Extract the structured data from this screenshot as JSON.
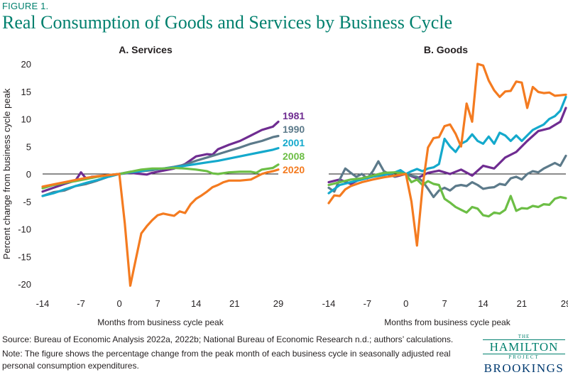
{
  "figure_label": "FIGURE 1.",
  "figure_title": "Real Consumption of Goods and Services by Business Cycle",
  "source": "Source: Bureau of Economic Analysis 2022a, 2022b; National Bureau of Economic Research n.d.; authors’ calculations.",
  "note": "Note: The figure shows the percentage change from the peak month of each business cycle in seasonally adjusted real personal consumption expenditures.",
  "logo": {
    "the": "THE",
    "hamilton": "HAMILTON",
    "project": "PROJECT",
    "brookings": "BROOKINGS"
  },
  "colors": {
    "1981": "#6f2c91",
    "1990": "#5c7a8a",
    "2001": "#14a9cc",
    "2008": "#6cbe45",
    "2020": "#f47b20",
    "zero_line": "#1a1a1a",
    "brand": "#00806e"
  },
  "chart_data": [
    {
      "type": "line",
      "title": "A. Services",
      "xlabel": "Months from business cycle peak",
      "ylabel": "Percent change from business cycle peak",
      "xlim": [
        -14,
        29
      ],
      "ylim": [
        -20,
        20
      ],
      "xticks": [
        -14,
        -7,
        0,
        7,
        14,
        21,
        29
      ],
      "yticks": [
        20,
        15,
        10,
        5,
        0,
        -5,
        -10,
        -15,
        -20
      ],
      "zero_line": true,
      "legend": "end-of-line labels",
      "series": [
        {
          "name": "1981",
          "x": [
            -14,
            -12,
            -10,
            -8,
            -7,
            -6,
            -5,
            -4,
            -2,
            0,
            2,
            4,
            5,
            6,
            8,
            10,
            12,
            14,
            15,
            16,
            17,
            18,
            20,
            22,
            24,
            26,
            28,
            29
          ],
          "y": [
            -3.2,
            -2.5,
            -1.8,
            -1.2,
            0.3,
            -0.9,
            -0.5,
            -0.5,
            -0.2,
            0,
            0.2,
            0,
            -0.1,
            0.2,
            0.6,
            1.0,
            1.8,
            3.2,
            3.4,
            3.6,
            3.5,
            4.5,
            5.3,
            6.0,
            7.0,
            8.0,
            8.6,
            9.5
          ]
        },
        {
          "name": "1990",
          "x": [
            -14,
            -12,
            -10,
            -8,
            -6,
            -4,
            -2,
            0,
            2,
            4,
            6,
            8,
            10,
            12,
            14,
            16,
            18,
            20,
            22,
            24,
            26,
            28,
            29
          ],
          "y": [
            -4.0,
            -3.3,
            -3.0,
            -2.2,
            -1.8,
            -1.2,
            -0.5,
            0,
            0.4,
            0.5,
            0.7,
            1.0,
            1.3,
            1.7,
            2.4,
            3.0,
            3.6,
            4.2,
            4.8,
            5.5,
            6.0,
            6.7,
            6.9
          ]
        },
        {
          "name": "2001",
          "x": [
            -14,
            -12,
            -10,
            -8,
            -6,
            -4,
            -2,
            0,
            2,
            4,
            6,
            8,
            10,
            12,
            14,
            16,
            18,
            20,
            22,
            24,
            26,
            28,
            29
          ],
          "y": [
            -4.0,
            -3.5,
            -2.8,
            -2.2,
            -1.6,
            -1.1,
            -0.5,
            0,
            0.3,
            0.5,
            0.9,
            1.0,
            1.2,
            1.5,
            1.8,
            2.1,
            2.4,
            2.8,
            3.2,
            3.6,
            4.0,
            4.4,
            4.7
          ]
        },
        {
          "name": "2008",
          "x": [
            -14,
            -12,
            -10,
            -8,
            -6,
            -4,
            -2,
            0,
            2,
            4,
            6,
            8,
            10,
            12,
            14,
            16,
            17,
            18,
            20,
            22,
            24,
            25,
            26,
            28,
            29
          ],
          "y": [
            -2.6,
            -2.0,
            -1.6,
            -1.3,
            -0.9,
            -0.5,
            -0.2,
            0,
            0.4,
            0.8,
            1.0,
            1.0,
            1.1,
            1.0,
            0.8,
            0.5,
            0.1,
            0.0,
            0.3,
            0.4,
            0.4,
            0.2,
            0.8,
            1.1,
            1.7
          ]
        },
        {
          "name": "2020",
          "x": [
            -14,
            -12,
            -10,
            -8,
            -6,
            -4,
            -2,
            0,
            1,
            2,
            3,
            4,
            5,
            6,
            7,
            8,
            9,
            10,
            11,
            12,
            13,
            14,
            15,
            16,
            17,
            18,
            19,
            20,
            22,
            24,
            26,
            27,
            28,
            29
          ],
          "y": [
            -2.3,
            -1.9,
            -1.5,
            -1.1,
            -0.7,
            -0.4,
            -0.2,
            0,
            -9.0,
            -20.3,
            -15.5,
            -10.8,
            -9.5,
            -8.4,
            -7.5,
            -7.2,
            -7.4,
            -7.6,
            -6.8,
            -7.1,
            -5.5,
            -4.5,
            -3.9,
            -3.2,
            -2.4,
            -2.0,
            -1.5,
            -1.2,
            -1.2,
            -1.0,
            0.0,
            0.3,
            0.5,
            0.8
          ]
        }
      ]
    },
    {
      "type": "line",
      "title": "B. Goods",
      "xlabel": "Months from business cycle peak",
      "xlim": [
        -14,
        29
      ],
      "ylim": [
        -20,
        20
      ],
      "xticks": [
        -14,
        -7,
        0,
        7,
        14,
        21,
        29
      ],
      "zero_line": true,
      "series": [
        {
          "name": "1981",
          "x": [
            -14,
            -12,
            -10,
            -8,
            -6,
            -4,
            -2,
            0,
            2,
            4,
            6,
            8,
            10,
            12,
            14,
            16,
            18,
            20,
            22,
            24,
            26,
            28,
            29
          ],
          "y": [
            -1.5,
            -1.0,
            -1.8,
            -0.8,
            -0.3,
            0.2,
            -0.5,
            0,
            -0.8,
            0.2,
            0.6,
            0.0,
            0.8,
            -0.3,
            1.5,
            1.0,
            3.0,
            4.0,
            6.0,
            7.8,
            8.3,
            9.5,
            12.0
          ]
        },
        {
          "name": "1990",
          "x": [
            -14,
            -13,
            -12,
            -11,
            -10,
            -9,
            -8,
            -7,
            -6,
            -5,
            -4,
            -3,
            -2,
            -1,
            0,
            1,
            2,
            3,
            4,
            5,
            6,
            7,
            8,
            9,
            10,
            11,
            12,
            13,
            14,
            15,
            16,
            17,
            18,
            19,
            20,
            21,
            22,
            23,
            24,
            25,
            26,
            27,
            28,
            29
          ],
          "y": [
            -2.5,
            -3.2,
            -1.0,
            1.0,
            0.2,
            -0.5,
            0.0,
            -0.8,
            0.5,
            2.3,
            0.5,
            0.0,
            -0.5,
            0.3,
            0,
            -0.3,
            -0.5,
            -1.3,
            -2.7,
            -4.2,
            -3.0,
            -2.5,
            -3.0,
            -2.2,
            -2.0,
            -2.2,
            -1.5,
            -2.0,
            -2.7,
            -2.5,
            -2.4,
            -1.8,
            -2.0,
            -0.8,
            -0.5,
            -1.0,
            0.0,
            0.5,
            0.3,
            1.0,
            1.5,
            2.0,
            1.5,
            3.3
          ]
        },
        {
          "name": "2001",
          "x": [
            -14,
            -12,
            -10,
            -8,
            -6,
            -4,
            -2,
            -1,
            0,
            1,
            2,
            3,
            4,
            5,
            6,
            7,
            8,
            9,
            10,
            11,
            12,
            13,
            14,
            15,
            16,
            17,
            18,
            19,
            20,
            21,
            22,
            23,
            24,
            25,
            26,
            27,
            28,
            29
          ],
          "y": [
            -3.5,
            -2.0,
            -1.5,
            -1.0,
            -0.5,
            -0.2,
            0.3,
            0.7,
            0,
            0.5,
            0.9,
            0.5,
            1.0,
            1.2,
            1.8,
            6.4,
            5.0,
            4.0,
            5.5,
            6.0,
            7.2,
            6.0,
            5.5,
            6.8,
            5.5,
            7.5,
            7.0,
            6.0,
            7.0,
            6.0,
            7.0,
            8.0,
            8.5,
            9.0,
            10.0,
            10.5,
            11.5,
            14.0
          ]
        },
        {
          "name": "2008",
          "x": [
            -14,
            -12,
            -10,
            -8,
            -6,
            -4,
            -2,
            0,
            1,
            2,
            3,
            4,
            5,
            6,
            7,
            8,
            9,
            10,
            11,
            12,
            13,
            14,
            15,
            16,
            17,
            18,
            19,
            20,
            21,
            22,
            23,
            24,
            25,
            26,
            27,
            28,
            29
          ],
          "y": [
            -2.0,
            -1.5,
            -1.0,
            -0.8,
            -0.3,
            0.2,
            0.3,
            0,
            -1.5,
            -1.0,
            -2.0,
            -1.3,
            -1.8,
            -2.0,
            -4.5,
            -5.2,
            -6.0,
            -6.5,
            -7.0,
            -6.0,
            -6.3,
            -7.5,
            -7.7,
            -7.0,
            -7.2,
            -6.5,
            -4.0,
            -6.7,
            -6.2,
            -6.3,
            -5.8,
            -6.0,
            -5.5,
            -5.6,
            -4.5,
            -4.2,
            -4.4
          ]
        },
        {
          "name": "2020",
          "x": [
            -14,
            -13,
            -12,
            -11,
            -10,
            -8,
            -6,
            -4,
            -2,
            0,
            1,
            2,
            3,
            4,
            5,
            6,
            7,
            8,
            9,
            10,
            11,
            12,
            13,
            14,
            15,
            16,
            17,
            18,
            19,
            20,
            21,
            22,
            23,
            24,
            25,
            26,
            27,
            28,
            29
          ],
          "y": [
            -5.3,
            -3.9,
            -4.0,
            -2.8,
            -2.2,
            -1.5,
            -1.0,
            -0.6,
            -0.3,
            0,
            -5.0,
            -13.0,
            -2.5,
            4.8,
            6.5,
            6.7,
            8.7,
            9.0,
            7.3,
            5.0,
            12.8,
            9.5,
            20.0,
            19.7,
            17.0,
            15.2,
            14.0,
            15.0,
            15.1,
            16.8,
            16.6,
            12.0,
            15.8,
            14.9,
            14.7,
            14.8,
            14.2,
            14.3,
            14.4
          ]
        }
      ]
    }
  ]
}
